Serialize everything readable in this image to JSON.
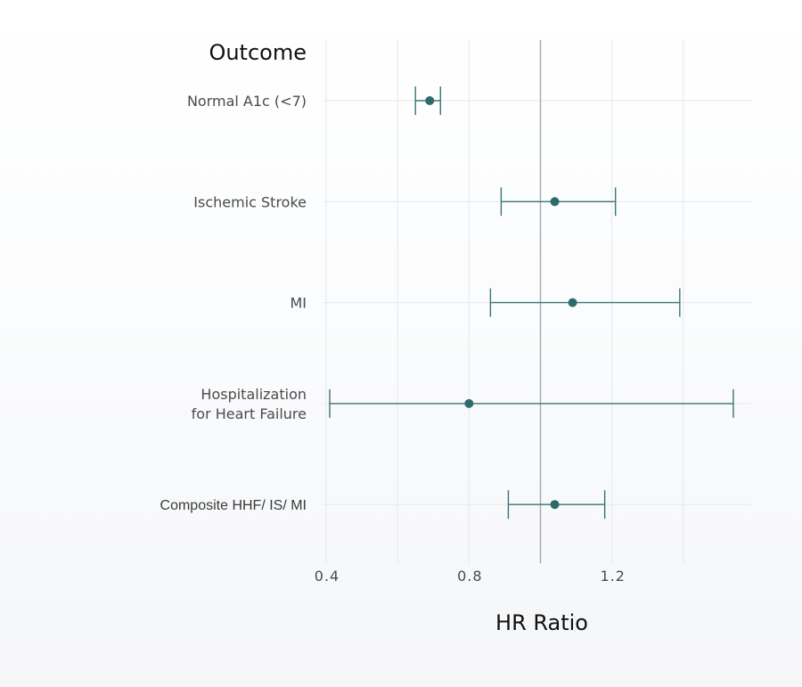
{
  "chart_data": {
    "type": "scatter",
    "subtype": "forest-plot",
    "ylabel": "Outcome",
    "xlabel": "HR Ratio",
    "xlim": [
      0.39,
      1.59
    ],
    "xticks": [
      0.4,
      0.8,
      1.2
    ],
    "xtick_labels": [
      "0.4",
      "0.8",
      "1.2"
    ],
    "minor_grid_x": [
      0.6,
      1.0,
      1.4
    ],
    "reference_line_x": 1.0,
    "grid": true,
    "point_color": "#2d6b6a",
    "line_color": "#3a7473",
    "rows": [
      {
        "lines": [
          "Normal A1c (<7)"
        ],
        "estimate": 0.69,
        "lower": 0.65,
        "upper": 0.72
      },
      {
        "lines": [
          "Ischemic Stroke"
        ],
        "estimate": 1.04,
        "lower": 0.89,
        "upper": 1.21
      },
      {
        "lines": [
          "MI"
        ],
        "estimate": 1.09,
        "lower": 0.86,
        "upper": 1.39
      },
      {
        "lines": [
          "Hospitalization",
          "for Heart Failure"
        ],
        "estimate": 0.8,
        "lower": 0.41,
        "upper": 1.54
      },
      {
        "lines": [
          "Composite HHF/ IS/ MI"
        ],
        "estimate": 1.04,
        "lower": 0.91,
        "upper": 1.18
      }
    ]
  }
}
